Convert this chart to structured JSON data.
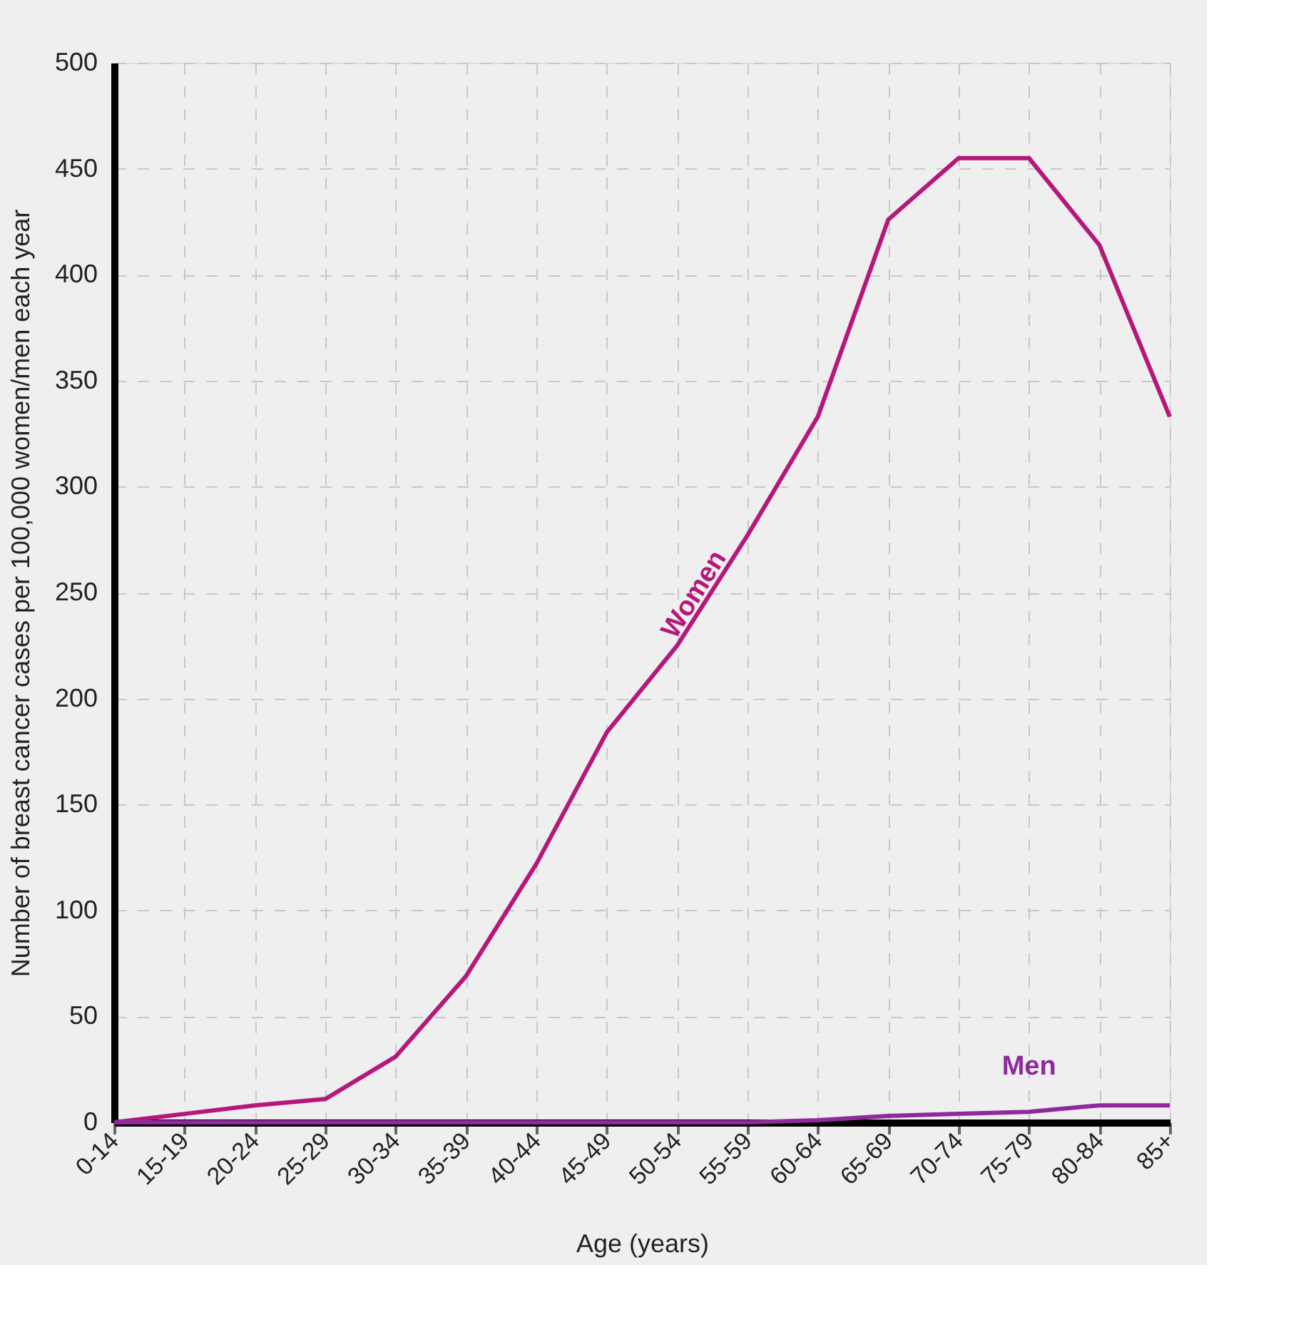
{
  "chart_data": {
    "type": "line",
    "xlabel": "Age (years)",
    "ylabel": "Number of breast cancer cases per 100,000 women/men each year",
    "categories": [
      "0-14",
      "15-19",
      "20-24",
      "25-29",
      "30-34",
      "35-39",
      "40-44",
      "45-49",
      "50-54",
      "55-59",
      "60-64",
      "65-69",
      "70-74",
      "75-79",
      "80-84",
      "85+"
    ],
    "series": [
      {
        "name": "Women",
        "color": "#b5177a",
        "values": [
          0,
          4,
          8,
          11,
          31,
          69,
          122,
          184,
          225,
          277,
          333,
          426,
          455,
          455,
          414,
          333
        ]
      },
      {
        "name": "Men",
        "color": "#8e2a9c",
        "values": [
          0,
          0,
          0,
          0,
          0,
          0,
          0,
          0,
          0,
          0,
          1,
          3,
          4,
          5,
          8,
          8
        ]
      }
    ],
    "ylim": [
      0,
      500
    ],
    "yticks": [
      0,
      50,
      100,
      150,
      200,
      250,
      300,
      350,
      400,
      450,
      500
    ],
    "grid": true
  }
}
